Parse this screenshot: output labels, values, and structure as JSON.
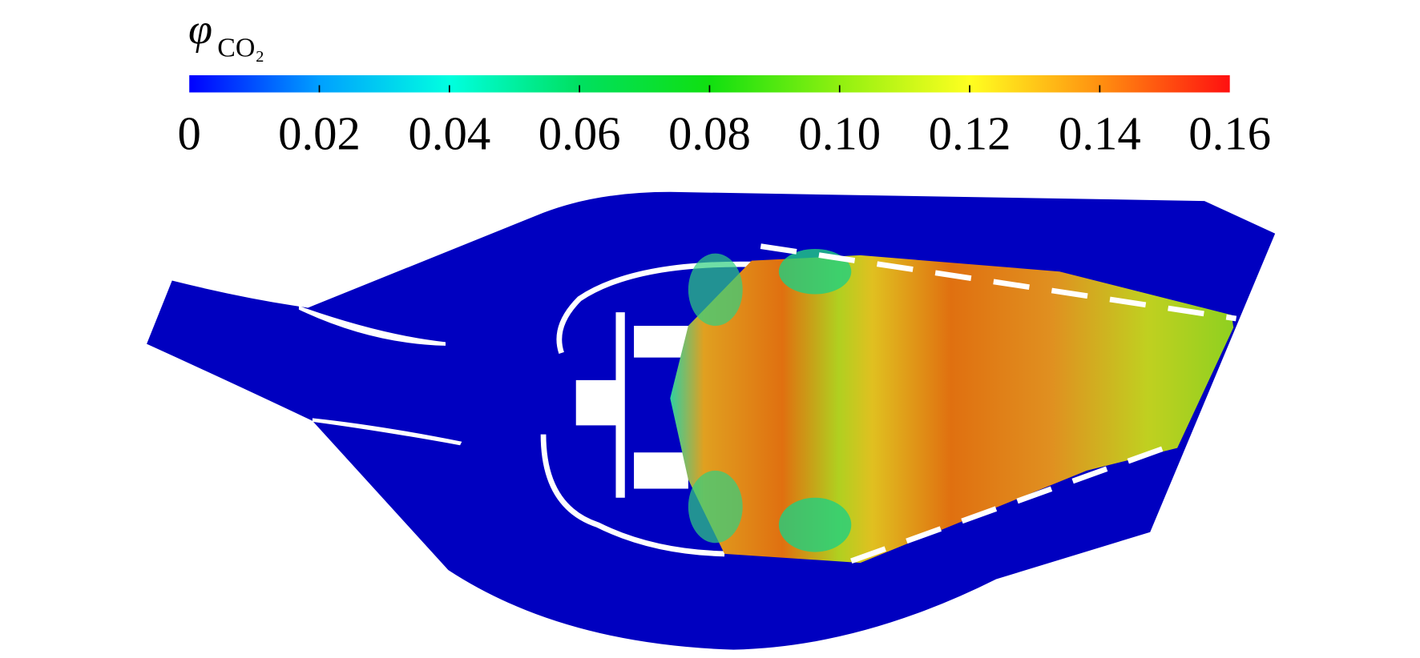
{
  "chart_data": {
    "type": "colorbar",
    "symbol": "φ",
    "subscript": "CO₂",
    "xlim": [
      0,
      0.16
    ],
    "xticks": [
      0,
      0.02,
      0.04,
      0.06,
      0.08,
      {
        "value": 0.1,
        "label": "0.10"
      },
      0.12,
      0.14,
      0.16
    ],
    "colormap": [
      "#0000ff",
      "#00a0ff",
      "#00ffe0",
      "#00e060",
      "#10e010",
      "#90f010",
      "#ffff20",
      "#ff9010",
      "#ff1010"
    ]
  }
}
